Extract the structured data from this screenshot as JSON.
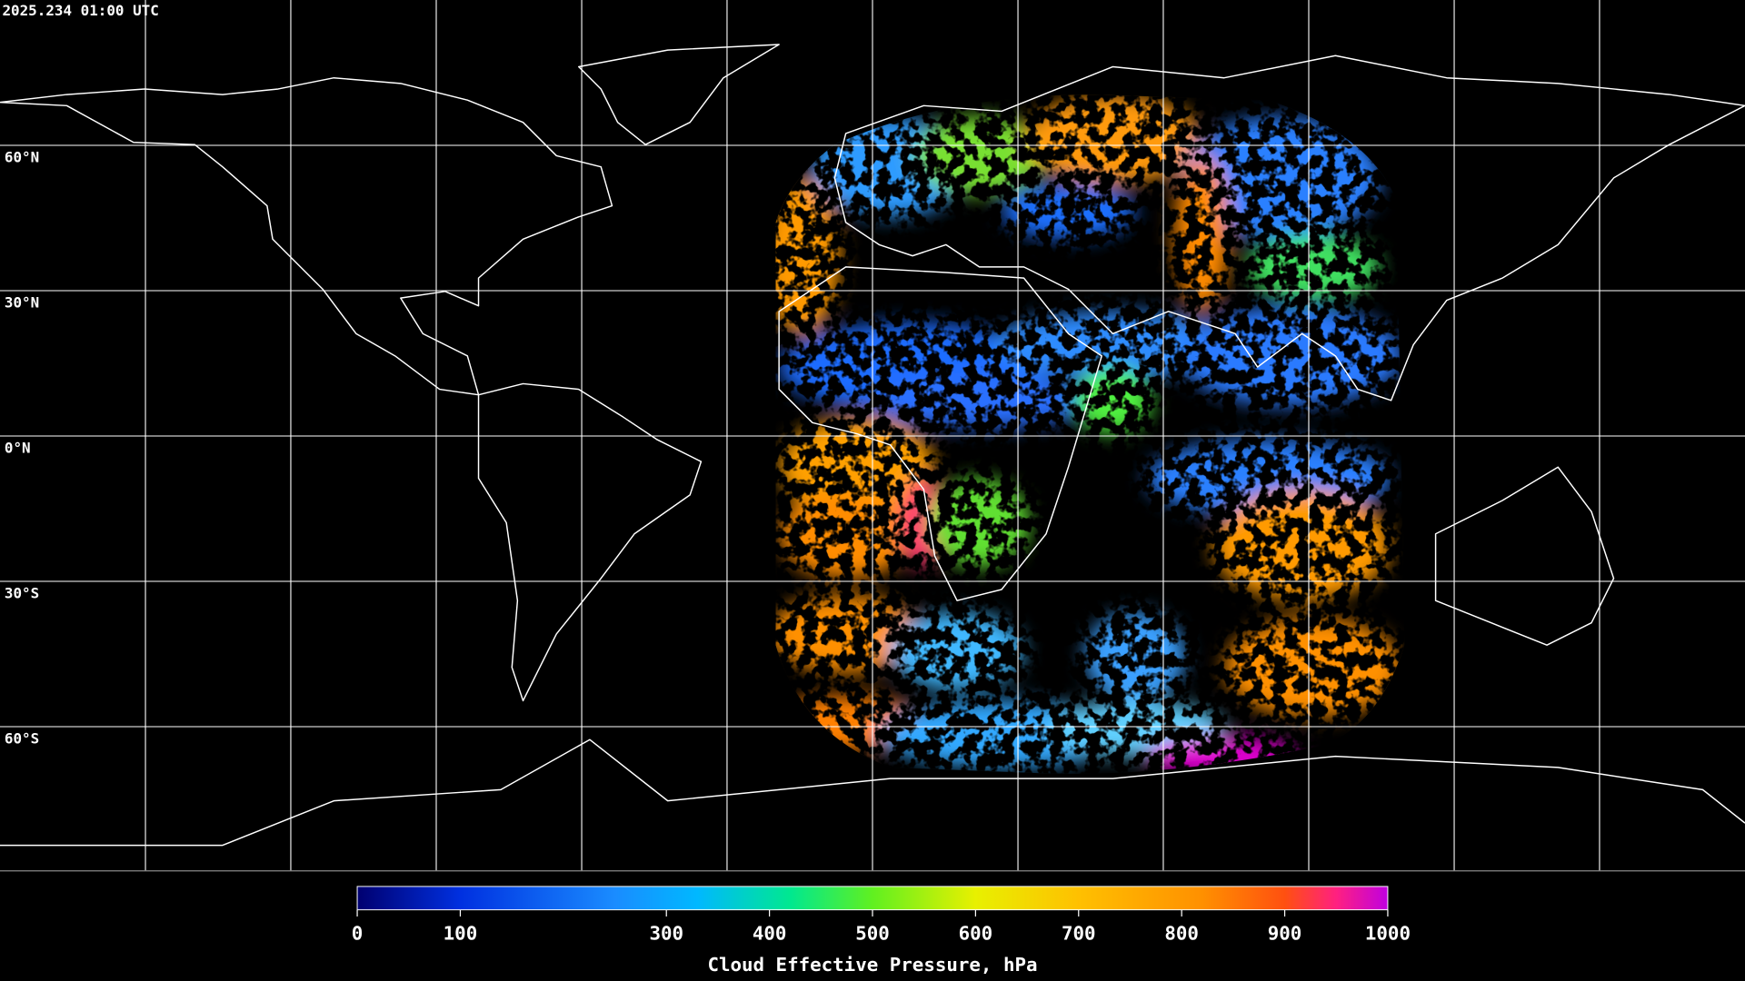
{
  "map": {
    "timestamp": "2025.234 01:00 UTC",
    "ylim": [
      -90,
      90
    ],
    "lat_ticks": [
      {
        "value": 60,
        "label": "60°N"
      },
      {
        "value": 30,
        "label": "30°N"
      },
      {
        "value": 0,
        "label": "0°N"
      },
      {
        "value": -30,
        "label": "30°S"
      },
      {
        "value": -60,
        "label": "60°S"
      }
    ]
  },
  "colorbar": {
    "label": "Cloud Effective Pressure, hPa",
    "lim": [
      0,
      1000
    ],
    "ticks": [
      0,
      100,
      300,
      400,
      500,
      600,
      700,
      800,
      900,
      1000
    ]
  }
}
